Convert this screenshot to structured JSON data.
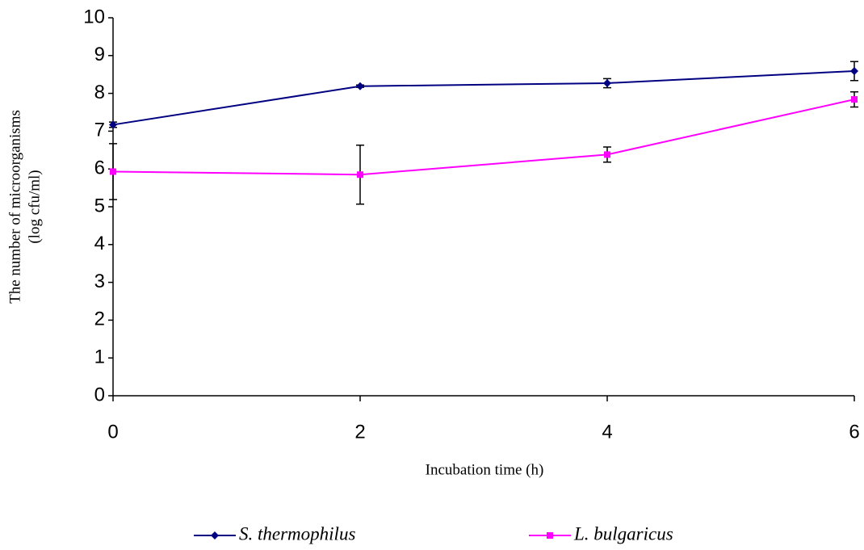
{
  "chart_data": {
    "type": "line",
    "xlabel": "Incubation time (h)",
    "ylabel": [
      "The number of microorganisms",
      "(log cfu/ml)"
    ],
    "x": [
      0,
      2,
      4,
      6
    ],
    "series": [
      {
        "name": "S. thermophilus",
        "color": "#000080",
        "marker": "diamond",
        "values": [
          7.17,
          8.19,
          8.27,
          8.59
        ],
        "errors": [
          0.07,
          0.03,
          0.12,
          0.25
        ]
      },
      {
        "name": "L. bulgaricus",
        "color": "#ff00ff",
        "marker": "square",
        "values": [
          5.93,
          5.85,
          6.38,
          7.84
        ],
        "errors": [
          0.74,
          0.78,
          0.2,
          0.2
        ]
      }
    ],
    "xlim": [
      0,
      6
    ],
    "xticks": [
      0,
      2,
      4,
      6
    ],
    "ylim": [
      0,
      10
    ],
    "yticks": [
      0,
      1,
      2,
      3,
      4,
      5,
      6,
      7,
      8,
      9,
      10
    ],
    "grid": false,
    "legend": "bottom"
  }
}
